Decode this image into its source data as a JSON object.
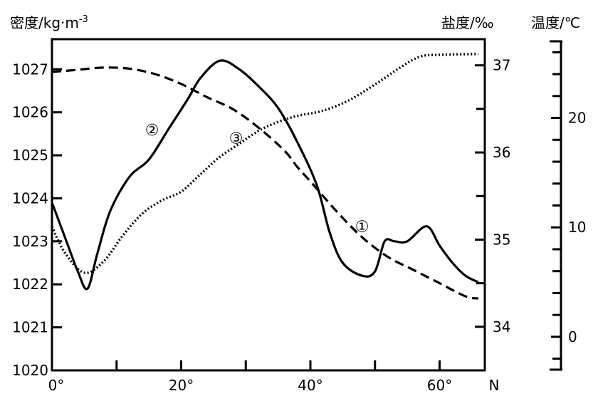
{
  "chart_data": {
    "type": "line",
    "axes": {
      "x": {
        "unit_label": "N",
        "range": [
          0,
          67
        ],
        "ticks": [
          0,
          10,
          20,
          30,
          40,
          50,
          60
        ],
        "tick_labels": [
          {
            "value": 0,
            "label": "0°"
          },
          {
            "value": 20,
            "label": "20°"
          },
          {
            "value": 40,
            "label": "40°"
          },
          {
            "value": 60,
            "label": "60°"
          }
        ]
      },
      "density": {
        "title": "密度/kg·m",
        "title_superscript": "-3",
        "range": [
          1020,
          1027.7
        ],
        "tick_labels": [
          "1020",
          "1021",
          "1022",
          "1023",
          "1024",
          "1025",
          "1026",
          "1027"
        ],
        "tick_values": [
          1020,
          1021,
          1022,
          1023,
          1024,
          1025,
          1026,
          1027
        ]
      },
      "salinity": {
        "title": "盐度/‰",
        "range": [
          33.5,
          37.3
        ],
        "tick_labels": [
          "34",
          "35",
          "36",
          "37"
        ],
        "tick_values": [
          34,
          35,
          36,
          37
        ],
        "minor_ticks": [
          34.5,
          35.5,
          36.5
        ]
      },
      "temperature": {
        "title": "温度/℃",
        "range": [
          -3,
          27
        ],
        "tick_labels": [
          "0",
          "10",
          "20"
        ],
        "tick_values": [
          0,
          10,
          20
        ],
        "minor_ticks": [
          -2,
          2,
          4,
          6,
          8,
          12,
          14,
          16,
          18,
          22,
          24,
          26
        ]
      }
    },
    "series": [
      {
        "name": "①",
        "axis": "temperature",
        "style": "dashed",
        "points": [
          [
            0,
            24.2
          ],
          [
            4,
            24.4
          ],
          [
            8,
            24.6
          ],
          [
            12,
            24.5
          ],
          [
            16,
            24.0
          ],
          [
            20,
            23.1
          ],
          [
            24,
            21.9
          ],
          [
            28,
            20.8
          ],
          [
            32,
            19.1
          ],
          [
            36,
            17.0
          ],
          [
            38,
            15.5
          ],
          [
            40,
            14.2
          ],
          [
            44,
            11.5
          ],
          [
            48,
            9.1
          ],
          [
            52,
            7.3
          ],
          [
            56,
            6.1
          ],
          [
            60,
            4.9
          ],
          [
            64,
            3.7
          ],
          [
            66,
            3.5
          ]
        ],
        "label_at": [
          48,
          10.1
        ]
      },
      {
        "name": "②",
        "axis": "density",
        "style": "solid",
        "points": [
          [
            0,
            1023.9
          ],
          [
            2,
            1023.1
          ],
          [
            4,
            1022.3
          ],
          [
            5.5,
            1021.9
          ],
          [
            7,
            1022.7
          ],
          [
            9,
            1023.7
          ],
          [
            12,
            1024.5
          ],
          [
            15,
            1024.9
          ],
          [
            18,
            1025.6
          ],
          [
            21,
            1026.3
          ],
          [
            23,
            1026.8
          ],
          [
            26,
            1027.2
          ],
          [
            29,
            1027.0
          ],
          [
            32,
            1026.6
          ],
          [
            35,
            1026.1
          ],
          [
            38,
            1025.3
          ],
          [
            41,
            1024.3
          ],
          [
            43,
            1023.2
          ],
          [
            45,
            1022.5
          ],
          [
            48,
            1022.2
          ],
          [
            50,
            1022.3
          ],
          [
            51.5,
            1023.0
          ],
          [
            53,
            1023.0
          ],
          [
            55,
            1023.0
          ],
          [
            58,
            1023.35
          ],
          [
            60,
            1022.9
          ],
          [
            62,
            1022.5
          ],
          [
            64,
            1022.2
          ],
          [
            66,
            1022.05
          ]
        ],
        "label_at": [
          15.5,
          1025.6
        ]
      },
      {
        "name": "③",
        "axis": "salinity",
        "style": "dotted",
        "points": [
          [
            0,
            35.15
          ],
          [
            2,
            34.85
          ],
          [
            5,
            34.62
          ],
          [
            8,
            34.75
          ],
          [
            11,
            35.05
          ],
          [
            14,
            35.3
          ],
          [
            17,
            35.45
          ],
          [
            20,
            35.55
          ],
          [
            23,
            35.75
          ],
          [
            26,
            35.95
          ],
          [
            29,
            36.1
          ],
          [
            32,
            36.25
          ],
          [
            35,
            36.35
          ],
          [
            38,
            36.42
          ],
          [
            42,
            36.48
          ],
          [
            46,
            36.6
          ],
          [
            50,
            36.78
          ],
          [
            54,
            36.98
          ],
          [
            57,
            37.1
          ],
          [
            60,
            37.12
          ],
          [
            66,
            37.13
          ]
        ],
        "label_at": [
          28.5,
          36.17
        ]
      }
    ]
  }
}
